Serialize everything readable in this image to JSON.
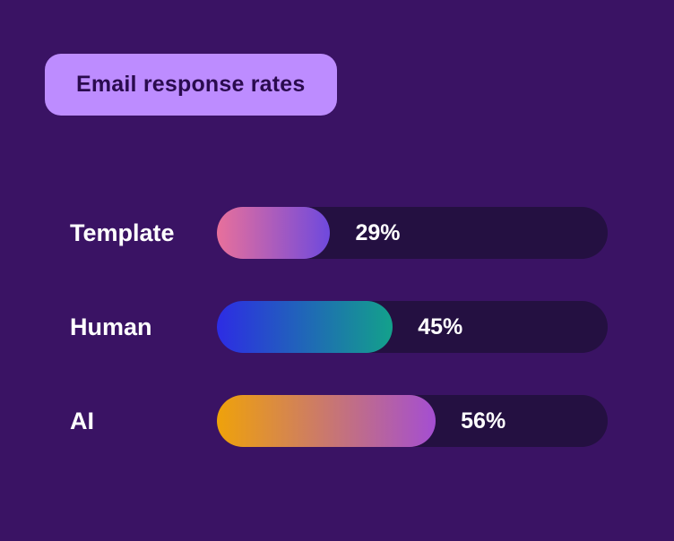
{
  "title": "Email response rates",
  "colors": {
    "background": "#3a1364",
    "title_badge_bg": "#bd8cff",
    "title_text": "#2a0b4e",
    "bar_track": "#241041",
    "label_text": "#ffffff"
  },
  "chart_data": {
    "type": "bar",
    "orientation": "horizontal",
    "title": "Email response rates",
    "categories": [
      "Template",
      "Human",
      "AI"
    ],
    "values": [
      29,
      45,
      56
    ],
    "value_labels": [
      "29%",
      "45%",
      "56%"
    ],
    "xlim": [
      0,
      100
    ],
    "grid": false,
    "legend": false,
    "bar_gradients": [
      [
        "#e8709b",
        "#6f49dd"
      ],
      [
        "#2d2ce4",
        "#13a18b"
      ],
      [
        "#efa20a",
        "#a44ed2"
      ]
    ]
  }
}
